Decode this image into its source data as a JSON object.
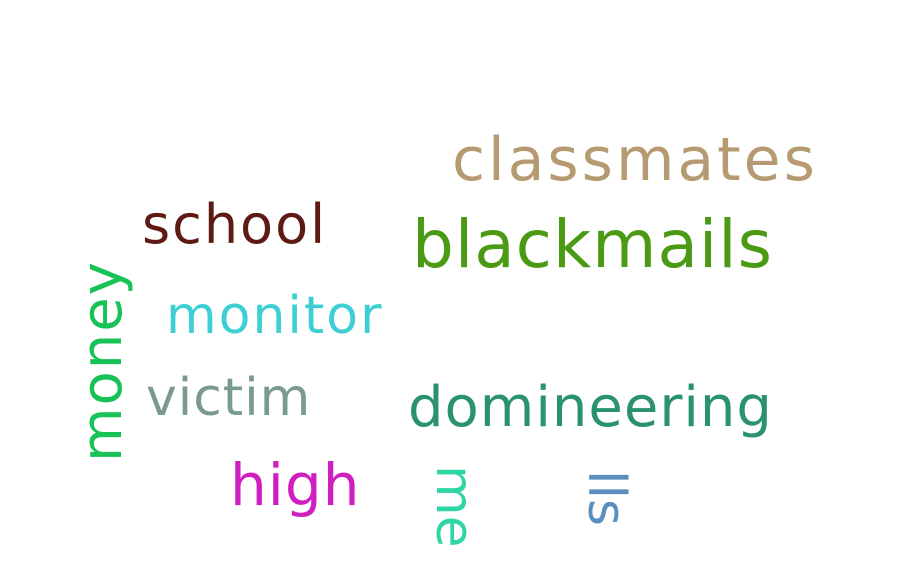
{
  "words": {
    "classmates": {
      "text": "classmates",
      "color": "#b59a72"
    },
    "school": {
      "text": "school",
      "color": "#5e1a14"
    },
    "blackmails": {
      "text": "blackmails",
      "color": "#4b9a14"
    },
    "monitor": {
      "text": "monitor",
      "color": "#3ecfd6"
    },
    "victim": {
      "text": "victim",
      "color": "#7a9a8e"
    },
    "domineering": {
      "text": "domineering",
      "color": "#2a9270"
    },
    "high": {
      "text": "high",
      "color": "#d11ec0"
    },
    "money": {
      "text": "money",
      "color": "#17c257"
    },
    "partial_rme": {
      "text": "me",
      "color": "#2ed6a6"
    },
    "partial_lls": {
      "text": "lls",
      "color": "#5a8ebc"
    }
  }
}
